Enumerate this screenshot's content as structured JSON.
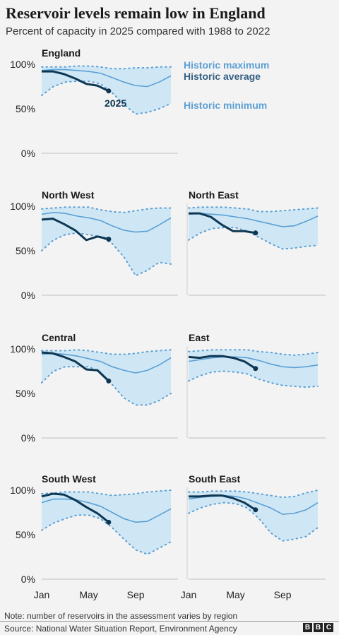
{
  "header": {
    "title": "Reservoir levels remain low in England",
    "subtitle": "Percent of capacity in 2025 compared with 1988 to 2022"
  },
  "chart_data": {
    "type": "area",
    "y_ticks": [
      "100%",
      "50%",
      "0%"
    ],
    "x_ticks": [
      "Jan",
      "May",
      "Sep"
    ],
    "ylim": [
      0,
      100
    ],
    "legend": {
      "max": "Historic maximum",
      "avg": "Historic average",
      "min": "Historic minimum",
      "year": "2025"
    },
    "x_months": [
      0,
      1,
      2,
      3,
      4,
      5,
      6,
      7,
      8,
      9,
      10,
      11
    ],
    "panels": [
      {
        "name": "England",
        "max": [
          97,
          97,
          97,
          98,
          98,
          97,
          95,
          95,
          96,
          96,
          97,
          97
        ],
        "avg": [
          93,
          94,
          94,
          93,
          92,
          90,
          85,
          80,
          76,
          75,
          80,
          87
        ],
        "min": [
          65,
          75,
          80,
          81,
          81,
          78,
          68,
          55,
          44,
          46,
          50,
          56
        ],
        "y2025": [
          92,
          92,
          89,
          84,
          78,
          76,
          70
        ]
      },
      {
        "name": "North West",
        "max": [
          97,
          98,
          99,
          99,
          99,
          96,
          94,
          93,
          95,
          97,
          98,
          98
        ],
        "avg": [
          91,
          93,
          92,
          89,
          87,
          84,
          78,
          73,
          71,
          72,
          79,
          87
        ],
        "min": [
          50,
          62,
          68,
          70,
          68,
          66,
          58,
          43,
          22,
          28,
          37,
          35
        ],
        "y2025": [
          85,
          86,
          80,
          73,
          62,
          66,
          63
        ]
      },
      {
        "name": "North East",
        "max": [
          98,
          99,
          99,
          99,
          98,
          97,
          94,
          94,
          95,
          96,
          97,
          98
        ],
        "avg": [
          91,
          92,
          91,
          90,
          88,
          86,
          83,
          80,
          77,
          78,
          83,
          89
        ],
        "min": [
          62,
          70,
          75,
          76,
          76,
          72,
          65,
          58,
          52,
          53,
          55,
          56
        ],
        "y2025": [
          92,
          92,
          88,
          79,
          72,
          72,
          70
        ]
      },
      {
        "name": "Central",
        "max": [
          98,
          98,
          98,
          99,
          98,
          96,
          94,
          94,
          95,
          97,
          98,
          99
        ],
        "avg": [
          94,
          95,
          94,
          92,
          89,
          86,
          80,
          76,
          73,
          76,
          82,
          90
        ],
        "min": [
          62,
          75,
          80,
          80,
          80,
          74,
          60,
          45,
          37,
          37,
          42,
          50
        ],
        "y2025": [
          96,
          95,
          91,
          86,
          77,
          76,
          64
        ]
      },
      {
        "name": "East",
        "max": [
          97,
          98,
          99,
          99,
          99,
          99,
          97,
          96,
          94,
          93,
          94,
          96
        ],
        "avg": [
          86,
          88,
          90,
          91,
          91,
          90,
          87,
          83,
          80,
          79,
          80,
          82
        ],
        "min": [
          64,
          70,
          74,
          75,
          74,
          72,
          66,
          62,
          59,
          58,
          57,
          58
        ],
        "y2025": [
          91,
          90,
          92,
          92,
          90,
          86,
          78
        ]
      },
      {
        "name": "South West",
        "max": [
          96,
          97,
          98,
          98,
          98,
          96,
          94,
          95,
          96,
          98,
          99,
          100
        ],
        "avg": [
          86,
          90,
          90,
          89,
          86,
          82,
          75,
          68,
          64,
          65,
          72,
          79
        ],
        "min": [
          55,
          63,
          68,
          72,
          72,
          68,
          58,
          45,
          33,
          28,
          35,
          42
        ],
        "y2025": [
          93,
          96,
          95,
          89,
          81,
          74,
          64
        ]
      },
      {
        "name": "South East",
        "max": [
          98,
          98,
          99,
          99,
          99,
          98,
          96,
          94,
          92,
          93,
          97,
          100
        ],
        "avg": [
          90,
          92,
          93,
          94,
          93,
          90,
          85,
          80,
          73,
          74,
          78,
          86
        ],
        "min": [
          74,
          80,
          84,
          86,
          85,
          80,
          68,
          52,
          43,
          45,
          48,
          58
        ],
        "y2025": [
          93,
          93,
          94,
          94,
          91,
          86,
          78
        ]
      }
    ]
  },
  "footer": {
    "note": "Note: number of reservoirs in the assessment varies by region",
    "source": "Source: National Water Situation Report, Environment Agency",
    "logo": [
      "B",
      "B",
      "C"
    ]
  }
}
